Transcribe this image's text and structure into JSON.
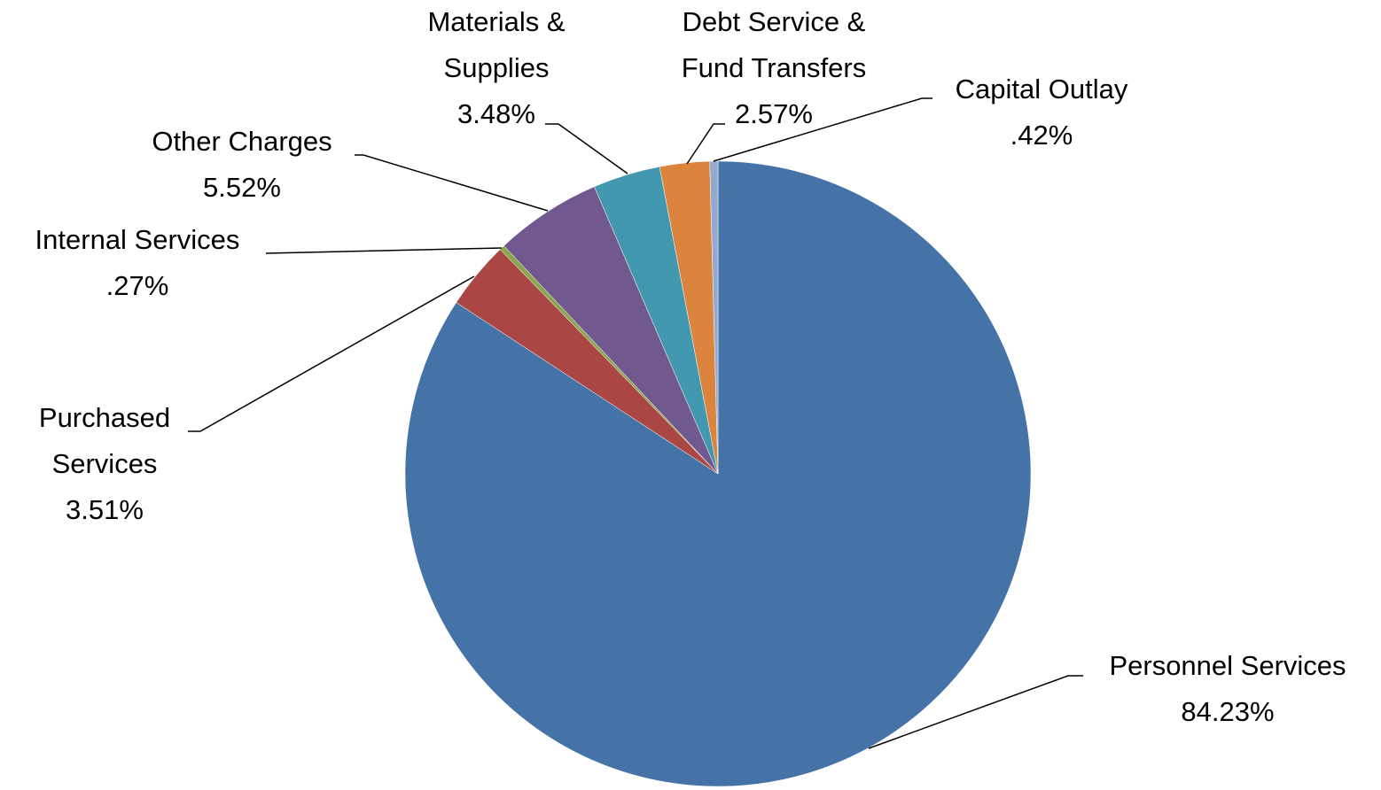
{
  "chart_data": {
    "type": "pie",
    "categories": [
      "Personnel Services",
      "Purchased Services",
      "Internal Services",
      "Other Charges",
      "Materials & Supplies",
      "Debt Service & Fund Transfers",
      "Capital Outlay"
    ],
    "values": [
      84.23,
      3.51,
      0.27,
      5.52,
      3.48,
      2.57,
      0.42
    ],
    "value_labels": [
      "84.23%",
      "3.51%",
      ".27%",
      "5.52%",
      "3.48%",
      "2.57%",
      ".42%"
    ],
    "colors": [
      "#4572a7",
      "#aa4643",
      "#89a54e",
      "#71588f",
      "#4198af",
      "#db843d",
      "#93a9cf"
    ]
  }
}
